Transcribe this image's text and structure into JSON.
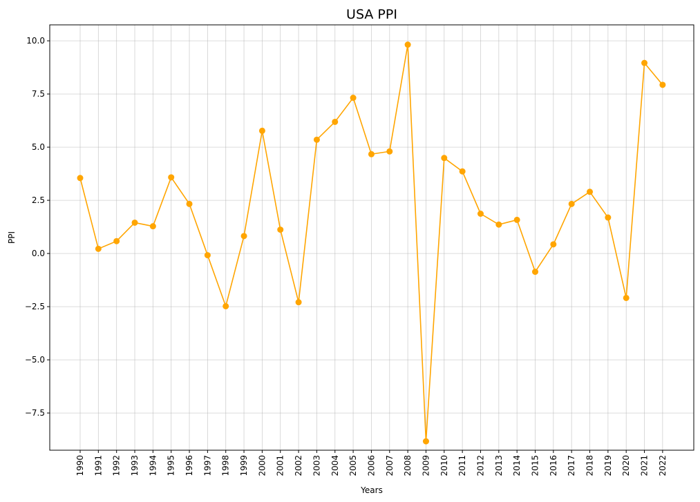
{
  "chart_data": {
    "type": "line",
    "title": "USA PPI",
    "xlabel": "Years",
    "ylabel": "PPI",
    "x": [
      "1990",
      "1991",
      "1992",
      "1993",
      "1994",
      "1995",
      "1996",
      "1997",
      "1998",
      "1999",
      "2000",
      "2001",
      "2002",
      "2003",
      "2004",
      "2005",
      "2006",
      "2007",
      "2008",
      "2009",
      "2010",
      "2011",
      "2012",
      "2013",
      "2014",
      "2015",
      "2016",
      "2017",
      "2018",
      "2019",
      "2020",
      "2021",
      "2022"
    ],
    "series": [
      {
        "values": [
          3.55,
          0.22,
          0.58,
          1.45,
          1.28,
          3.58,
          2.33,
          -0.08,
          -2.48,
          0.82,
          5.77,
          1.12,
          -2.29,
          5.35,
          6.19,
          7.32,
          4.67,
          4.8,
          9.82,
          -8.83,
          4.49,
          3.86,
          1.87,
          1.36,
          1.58,
          -0.86,
          0.43,
          2.33,
          2.9,
          1.69,
          -2.09,
          8.96,
          7.93
        ],
        "color": "#ffa500"
      }
    ],
    "ylim": [
      -9.25,
      10.75
    ],
    "yticks": [
      -7.5,
      -5.0,
      -2.5,
      0.0,
      2.5,
      5.0,
      7.5,
      10.0
    ],
    "ytick_labels": [
      "−7.5",
      "−5.0",
      "−2.5",
      "0.0",
      "2.5",
      "5.0",
      "7.5",
      "10.0"
    ],
    "grid": true,
    "marker": "circle"
  }
}
